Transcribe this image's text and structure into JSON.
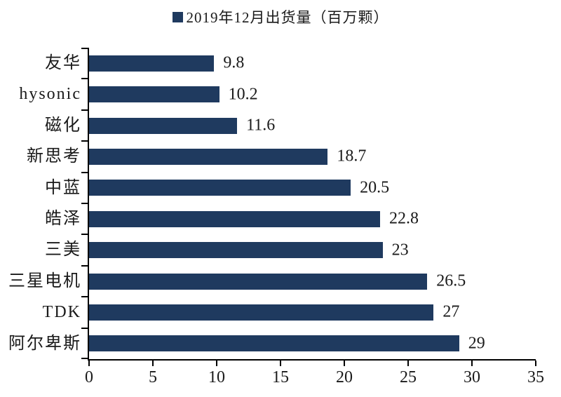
{
  "legend": {
    "marker": "square",
    "marker_color": "#1F3A5F",
    "label": "2019年12月出货量（百万颗）"
  },
  "chart_data": {
    "type": "bar",
    "orientation": "horizontal",
    "title": "2019年12月出货量（百万颗）",
    "categories": [
      "友华",
      "hysonic",
      "磁化",
      "新思考",
      "中蓝",
      "皓泽",
      "三美",
      "三星电机",
      "TDK",
      "阿尔卑斯"
    ],
    "values": [
      9.8,
      10.2,
      11.6,
      18.7,
      20.5,
      22.8,
      23,
      26.5,
      27,
      29
    ],
    "value_labels": [
      "9.8",
      "10.2",
      "11.6",
      "18.7",
      "20.5",
      "22.8",
      "23",
      "26.5",
      "27",
      "29"
    ],
    "xlabel": "",
    "ylabel": "",
    "xlim": [
      0,
      35
    ],
    "x_tick_labels": [
      "0",
      "5",
      "10",
      "15",
      "20",
      "25",
      "30",
      "35"
    ],
    "x_tick_values": [
      0,
      5,
      10,
      15,
      20,
      25,
      30,
      35
    ],
    "bar_color": "#1F3A5F",
    "axis_color": "#000000",
    "text_color": "#1A1A1A",
    "grid": false,
    "legend_position": "top-center"
  }
}
